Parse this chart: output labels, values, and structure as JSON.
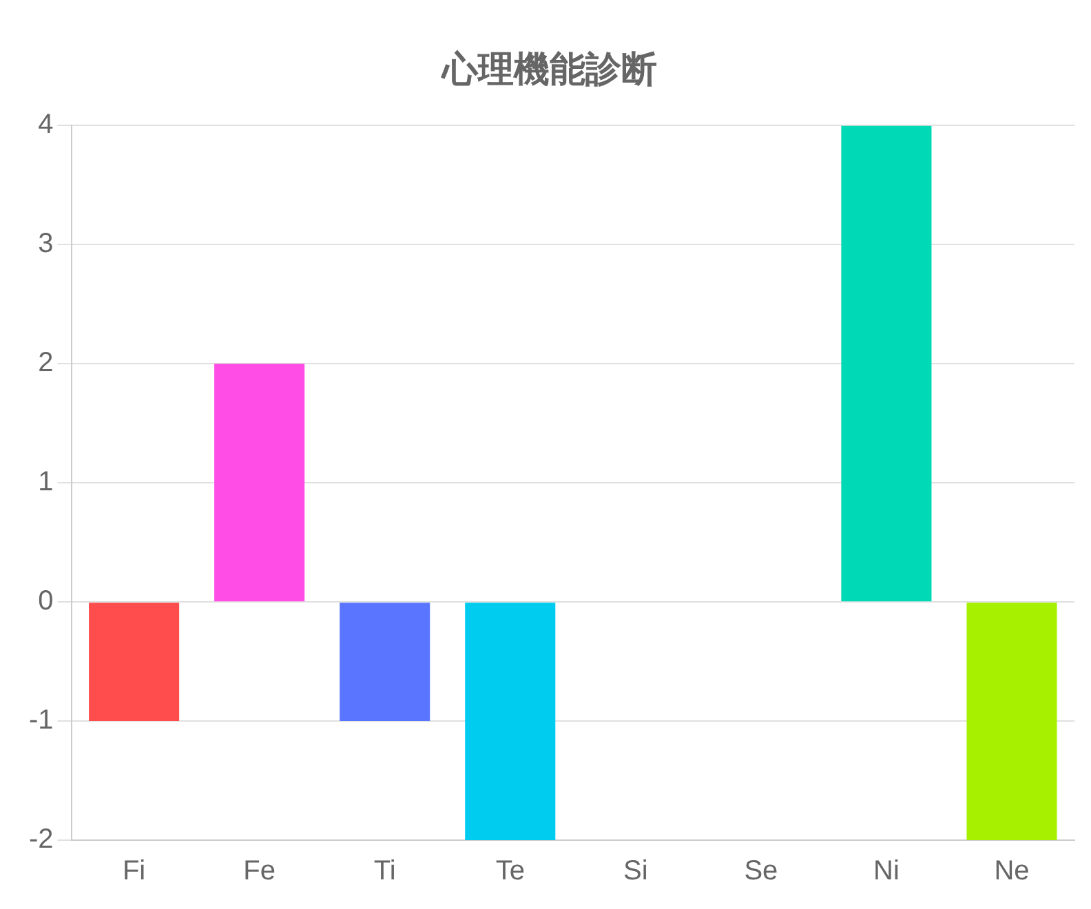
{
  "chart_data": {
    "type": "bar",
    "title": "心理機能診断",
    "categories": [
      "Fi",
      "Fe",
      "Ti",
      "Te",
      "Si",
      "Se",
      "Ni",
      "Ne"
    ],
    "values": [
      -1,
      2,
      -1,
      -2,
      0,
      0,
      4,
      -2
    ],
    "colors": [
      "#ff4d4d",
      "#ff4de6",
      "#5a75ff",
      "#00ccf0",
      "#ffb84d",
      "#b84dff",
      "#00d9b5",
      "#a6f000"
    ],
    "ylim": [
      -2,
      4
    ],
    "yticks": [
      -2,
      -1,
      0,
      1,
      2,
      3,
      4
    ],
    "grid": "y",
    "legend": false
  }
}
